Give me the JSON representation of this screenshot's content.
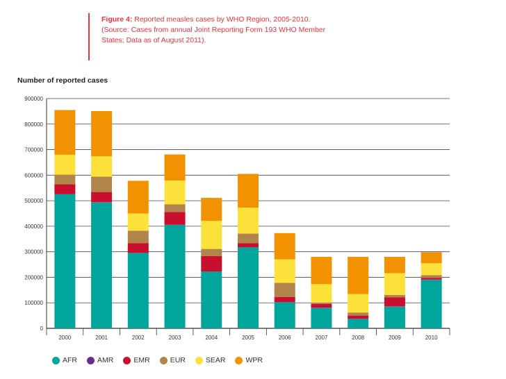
{
  "caption": {
    "label": "Figure 4:",
    "text": " Reported measles cases by WHO Region, 2005-2010.",
    "line2": "(Source: Cases from annual Joint Reporting Form 193 WHO Member",
    "line3": "States; Data as of August 2011).",
    "color": "#e8323c"
  },
  "chart_data": {
    "type": "bar",
    "stacked": true,
    "title": "Reported measles cases by WHO Region, 2005-2010.",
    "xlabel": "",
    "ylabel": "Number of reported cases",
    "ylim": [
      0,
      900000
    ],
    "yticks": [
      "0",
      "100000",
      "200000",
      "300000",
      "400000",
      "500000",
      "600000",
      "700000",
      "800000",
      "900000"
    ],
    "grid": true,
    "legend": "bottom",
    "categories": [
      "2000",
      "2001",
      "2002",
      "2003",
      "2004",
      "2005",
      "2006",
      "2007",
      "2008",
      "2009",
      "2010"
    ],
    "series": [
      {
        "name": "AFR",
        "color": "#00a59b",
        "values": [
          525000,
          493000,
          295000,
          405000,
          222000,
          317000,
          102000,
          80000,
          37000,
          85000,
          190000
        ]
      },
      {
        "name": "AMR",
        "color": "#6a2c8c",
        "values": [
          1000,
          1000,
          1000,
          1000,
          1000,
          1000,
          1000,
          1000,
          1000,
          1000,
          1000
        ]
      },
      {
        "name": "EMR",
        "color": "#c8102e",
        "values": [
          38000,
          40000,
          38000,
          50000,
          60000,
          15000,
          20000,
          15000,
          12000,
          35000,
          7000
        ]
      },
      {
        "name": "EUR",
        "color": "#b0844a",
        "values": [
          38000,
          60000,
          48000,
          30000,
          28000,
          38000,
          55000,
          5000,
          12000,
          10000,
          10000
        ]
      },
      {
        "name": "SEAR",
        "color": "#fde13b",
        "values": [
          78000,
          80000,
          68000,
          93000,
          110000,
          102000,
          92000,
          72000,
          72000,
          85000,
          47000
        ]
      },
      {
        "name": "WPR",
        "color": "#f39200",
        "values": [
          175000,
          177000,
          128000,
          102000,
          90000,
          132000,
          103000,
          107000,
          146000,
          64000,
          43000
        ]
      }
    ]
  }
}
